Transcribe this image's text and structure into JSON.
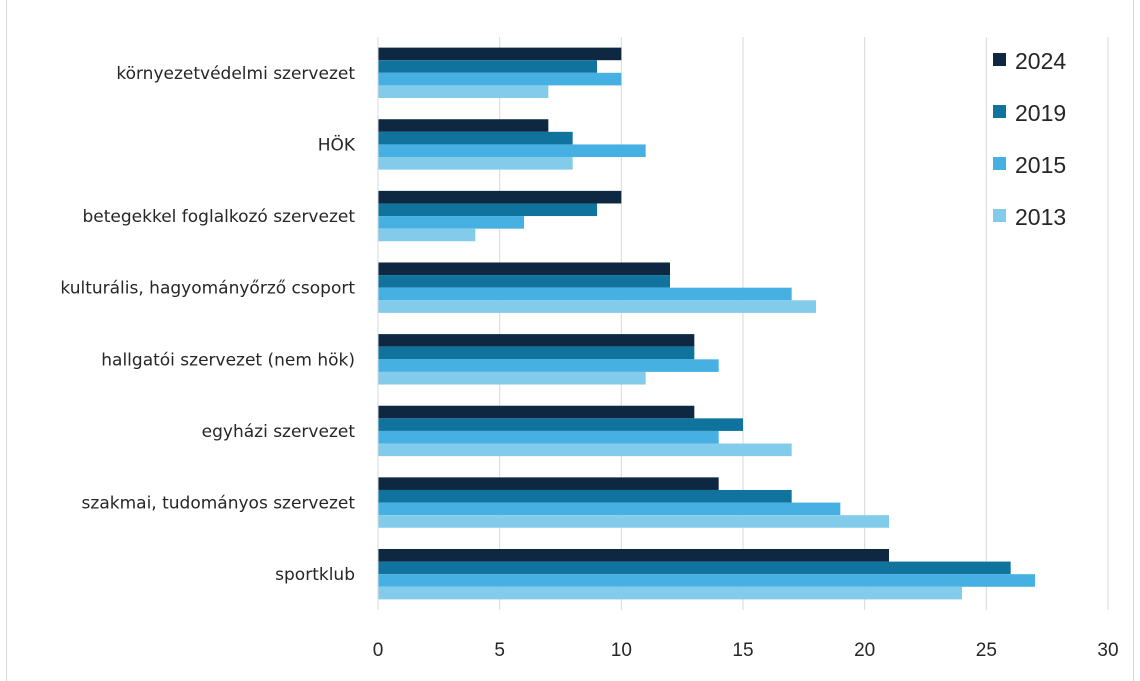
{
  "chart_data": {
    "type": "bar",
    "orientation": "horizontal",
    "categories": [
      "környezetvédelmi szervezet",
      "HÖK",
      "betegekkel foglalkozó szervezet",
      "kulturális, hagyományőrző csoport",
      "hallgatói szervezet (nem hök)",
      "egyházi szervezet",
      "szakmai, tudományos szervezet",
      "sportklub"
    ],
    "series": [
      {
        "name": "2024",
        "color": "#0e2841",
        "values": [
          10,
          7,
          10,
          12,
          13,
          13,
          14,
          21
        ]
      },
      {
        "name": "2019",
        "color": "#10739e",
        "values": [
          9,
          8,
          9,
          12,
          13,
          15,
          17,
          26
        ]
      },
      {
        "name": "2015",
        "color": "#47b0e3",
        "values": [
          10,
          11,
          6,
          17,
          14,
          14,
          19,
          27
        ]
      },
      {
        "name": "2013",
        "color": "#83cbeb",
        "values": [
          7,
          8,
          4,
          18,
          11,
          17,
          21,
          24
        ]
      }
    ],
    "xlim": [
      0,
      30
    ],
    "xticks": [
      0,
      5,
      10,
      15,
      20,
      25,
      30
    ],
    "title": "",
    "xlabel": "",
    "ylabel": "",
    "grid": "vertical",
    "legend_position": "right"
  }
}
